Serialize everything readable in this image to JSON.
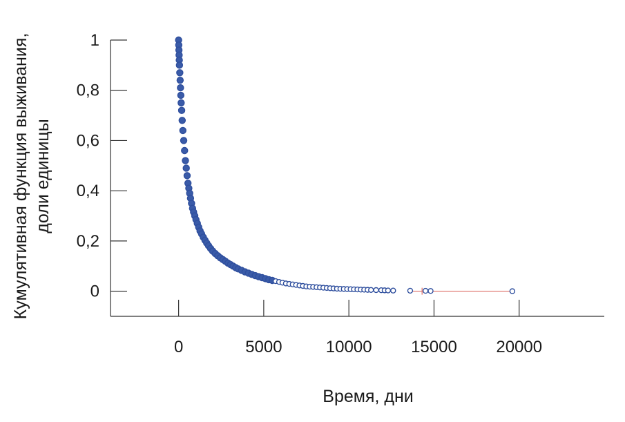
{
  "chart_data": {
    "type": "scatter",
    "title": "",
    "xlabel": "Время, дни",
    "ylabel_lines": [
      "Кумулятивная функция выживания,",
      "доли единицы"
    ],
    "xlim": [
      -4000,
      25000
    ],
    "ylim": [
      -0.1,
      1.0
    ],
    "x_ticks": [
      0,
      5000,
      10000,
      15000,
      20000
    ],
    "x_tick_labels": [
      "0",
      "5000",
      "10000",
      "15000",
      "20000"
    ],
    "y_ticks": [
      0,
      0.2,
      0.4,
      0.6,
      0.8,
      1
    ],
    "y_tick_labels": [
      "0",
      "0,2",
      "0,4",
      "0,6",
      "0,8",
      "1"
    ],
    "grid": false,
    "marker_color": "#2f4f9e",
    "marker_fill": "#3a5ba8",
    "censored_line_color": "#e07a72",
    "series": [
      {
        "x": [
          0,
          10,
          20,
          30,
          40,
          50,
          70,
          90,
          110,
          130,
          150,
          180,
          210,
          250,
          300,
          350,
          400,
          450,
          500,
          550,
          600,
          650,
          700,
          760,
          820,
          880,
          950,
          1020,
          1100,
          1180,
          1260,
          1350,
          1450,
          1550,
          1650,
          1760,
          1880,
          2000,
          2150,
          2300,
          2450,
          2600,
          2750,
          2900,
          3050,
          3200,
          3350,
          3500,
          3700,
          3900,
          4100,
          4300,
          4500,
          4700,
          4900,
          5100,
          5300,
          5500,
          5700,
          5900,
          6100,
          6300,
          6500,
          6700,
          6900,
          7100,
          7300,
          7500,
          7700,
          7900,
          8100,
          8300,
          8500,
          8700,
          8900,
          9100,
          9300,
          9500,
          9700,
          9900,
          10100,
          10300,
          10500,
          10700,
          10900,
          11100,
          11300,
          11600,
          11900,
          12100,
          12300,
          12600,
          13600,
          14500,
          14800,
          19600
        ],
        "y": [
          1.0,
          0.98,
          0.96,
          0.94,
          0.92,
          0.9,
          0.87,
          0.84,
          0.81,
          0.78,
          0.75,
          0.72,
          0.68,
          0.64,
          0.6,
          0.56,
          0.52,
          0.49,
          0.46,
          0.43,
          0.41,
          0.39,
          0.37,
          0.35,
          0.33,
          0.315,
          0.3,
          0.285,
          0.27,
          0.255,
          0.24,
          0.228,
          0.215,
          0.203,
          0.192,
          0.181,
          0.17,
          0.16,
          0.15,
          0.141,
          0.133,
          0.126,
          0.119,
          0.112,
          0.106,
          0.1,
          0.094,
          0.089,
          0.083,
          0.077,
          0.072,
          0.067,
          0.062,
          0.058,
          0.054,
          0.05,
          0.046,
          0.043,
          0.04,
          0.037,
          0.034,
          0.031,
          0.029,
          0.027,
          0.025,
          0.023,
          0.021,
          0.019,
          0.018,
          0.017,
          0.016,
          0.015,
          0.014,
          0.013,
          0.012,
          0.011,
          0.01,
          0.0095,
          0.009,
          0.0085,
          0.008,
          0.0075,
          0.007,
          0.0065,
          0.006,
          0.0055,
          0.005,
          0.0045,
          0.004,
          0.0035,
          0.003,
          0.0025,
          0.002,
          0.0015,
          0.001,
          0.0
        ]
      }
    ],
    "censored_segment": {
      "x_start": 13600,
      "x_end": 19600,
      "y": 0.0
    },
    "censored_ticks_x": [
      14300
    ]
  }
}
